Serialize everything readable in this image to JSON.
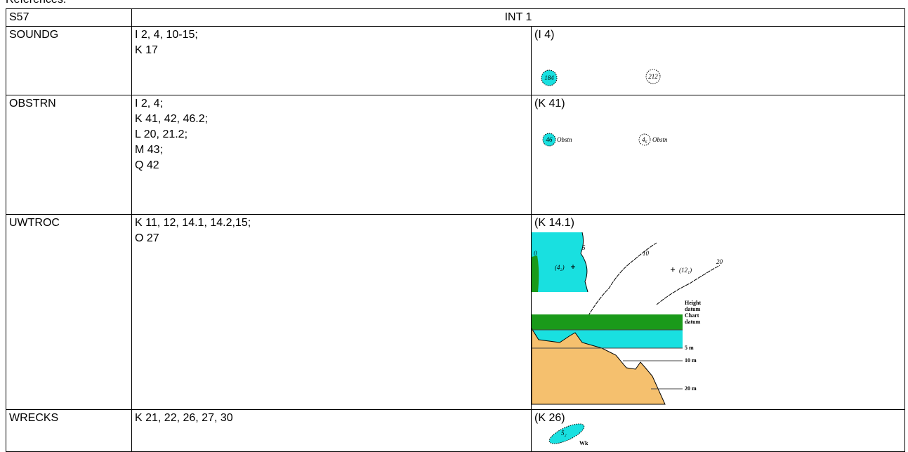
{
  "caption": "References:",
  "table": {
    "header": [
      "S57",
      "INT 1"
    ],
    "rows": [
      {
        "code": "SOUNDG",
        "refs": [
          "I 2, 4, 10-15;",
          "K 17"
        ],
        "example": "(I 4)",
        "figure": [
          "184",
          "212"
        ]
      },
      {
        "code": "OBSTRN",
        "refs": [
          "I 2, 4;",
          "K 41, 42, 46.2;",
          "L 20, 21.2;",
          "M 43;",
          "Q 42"
        ],
        "example": "(K 41)",
        "figure": [
          "46",
          "Obstn",
          "4₆",
          "Obstn"
        ]
      },
      {
        "code": "UWTROC",
        "refs": [
          "K 11, 12, 14.1, 14.2,15;",
          "O 27"
        ],
        "example": "(K 14.1)",
        "figure": [
          "0",
          "5",
          "(4₂)",
          "10",
          "(12₁)",
          "20",
          "Height",
          "datum",
          "Chart",
          "datum",
          "5 m",
          "10 m",
          "20 m"
        ]
      },
      {
        "code": "WRECKS",
        "refs": [
          "K 21, 22, 26, 27, 30"
        ],
        "example": "(K 26)",
        "figure": [
          "5₂",
          "Wk"
        ]
      }
    ]
  }
}
